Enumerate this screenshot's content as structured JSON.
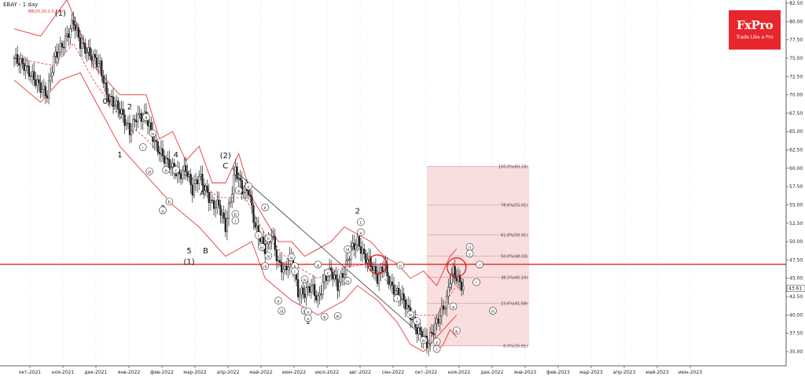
{
  "chart_data": {
    "type": "candlestick",
    "title": "EBAY - 1 day",
    "indicator": "BB(20,20,2.0,2.0)",
    "logo": {
      "brand": "FxPro",
      "tagline": "Trade Like a Pro"
    },
    "colors": {
      "band": "#e23b3b",
      "hline": "#e01010",
      "candle": "#222222",
      "fib_fill": "#f8dede",
      "fib_line": "#e6a0a0",
      "trend": "#333333"
    },
    "y_axis": {
      "min": 33.5,
      "max": 82.5,
      "ticks": [
        35.0,
        37.5,
        40.0,
        42.5,
        45.0,
        47.5,
        50.0,
        52.5,
        55.0,
        57.5,
        60.0,
        62.5,
        65.0,
        67.5,
        70.0,
        72.5,
        75.0,
        77.5,
        80.0,
        82.5
      ],
      "current_price": "43.61"
    },
    "x_axis": {
      "months": [
        "окт-2021",
        "ноя-2021",
        "дек-2021",
        "янв-2022",
        "фев-2022",
        "мар-2022",
        "апр-2022",
        "май-2022",
        "июн-2022",
        "июл-2022",
        "авг-2022",
        "сен-2022",
        "окт-2022",
        "ноя-2022",
        "дек-2022",
        "янв-2023",
        "фев-2023",
        "мар-2023",
        "апр-2023",
        "май-2023",
        "июн-2023"
      ]
    },
    "price_path": [
      [
        0,
        75
      ],
      [
        3,
        74
      ],
      [
        8,
        71
      ],
      [
        10,
        70
      ],
      [
        12,
        75
      ],
      [
        15,
        77
      ],
      [
        18,
        80
      ],
      [
        20,
        77
      ],
      [
        22,
        76
      ],
      [
        26,
        74
      ],
      [
        28,
        70
      ],
      [
        32,
        68
      ],
      [
        35,
        65
      ],
      [
        37,
        67
      ],
      [
        40,
        67
      ],
      [
        43,
        63
      ],
      [
        46,
        61
      ],
      [
        48,
        60
      ],
      [
        50,
        59
      ],
      [
        52,
        60
      ],
      [
        54,
        57
      ],
      [
        56,
        59
      ],
      [
        58,
        57
      ],
      [
        60,
        55
      ],
      [
        62,
        55
      ],
      [
        64,
        52
      ],
      [
        66,
        57
      ],
      [
        67,
        60
      ],
      [
        69,
        57
      ],
      [
        71,
        57
      ],
      [
        73,
        52
      ],
      [
        75,
        50
      ],
      [
        76,
        49
      ],
      [
        78,
        51
      ],
      [
        79,
        49
      ],
      [
        80,
        47
      ],
      [
        82,
        46
      ],
      [
        84,
        48
      ],
      [
        86,
        43
      ],
      [
        88,
        43
      ],
      [
        90,
        44
      ],
      [
        92,
        42
      ],
      [
        94,
        45
      ],
      [
        96,
        46
      ],
      [
        98,
        44
      ],
      [
        100,
        46
      ],
      [
        102,
        49
      ],
      [
        104,
        50
      ],
      [
        106,
        48
      ],
      [
        108,
        47
      ],
      [
        110,
        45
      ],
      [
        112,
        47
      ],
      [
        114,
        44
      ],
      [
        116,
        43
      ],
      [
        118,
        42
      ],
      [
        120,
        40
      ],
      [
        122,
        38
      ],
      [
        124,
        37
      ],
      [
        125,
        36
      ],
      [
        127,
        38
      ],
      [
        129,
        40
      ],
      [
        131,
        42
      ],
      [
        132,
        45
      ],
      [
        133,
        46
      ],
      [
        134,
        45
      ],
      [
        135,
        44.5
      ],
      [
        136,
        43.6
      ]
    ],
    "upper_band": [
      [
        0,
        79
      ],
      [
        8,
        78
      ],
      [
        16,
        83
      ],
      [
        24,
        74
      ],
      [
        32,
        70
      ],
      [
        40,
        70
      ],
      [
        44,
        64
      ],
      [
        48,
        65
      ],
      [
        52,
        61
      ],
      [
        56,
        63
      ],
      [
        60,
        58
      ],
      [
        64,
        58
      ],
      [
        68,
        62
      ],
      [
        72,
        56
      ],
      [
        76,
        53
      ],
      [
        80,
        50
      ],
      [
        84,
        50
      ],
      [
        88,
        48
      ],
      [
        92,
        49
      ],
      [
        96,
        50
      ],
      [
        100,
        52
      ],
      [
        104,
        51
      ],
      [
        108,
        50
      ],
      [
        112,
        48
      ],
      [
        116,
        47
      ],
      [
        120,
        45
      ],
      [
        124,
        46
      ],
      [
        128,
        44
      ],
      [
        132,
        48
      ],
      [
        134,
        49
      ]
    ],
    "mid_band": [
      [
        0,
        75
      ],
      [
        12,
        74
      ],
      [
        18,
        77
      ],
      [
        24,
        72
      ],
      [
        32,
        67
      ],
      [
        40,
        64
      ],
      [
        48,
        60
      ],
      [
        56,
        58
      ],
      [
        62,
        56
      ],
      [
        70,
        56
      ],
      [
        76,
        51
      ],
      [
        84,
        47
      ],
      [
        92,
        45
      ],
      [
        100,
        46.5
      ],
      [
        108,
        47
      ],
      [
        116,
        43
      ],
      [
        122,
        40
      ],
      [
        128,
        40
      ],
      [
        134,
        44
      ]
    ],
    "lower_band": [
      [
        0,
        72
      ],
      [
        8,
        69
      ],
      [
        14,
        72
      ],
      [
        20,
        73
      ],
      [
        26,
        68
      ],
      [
        32,
        63
      ],
      [
        40,
        59
      ],
      [
        48,
        55
      ],
      [
        56,
        52
      ],
      [
        64,
        48
      ],
      [
        72,
        50
      ],
      [
        76,
        45
      ],
      [
        84,
        42
      ],
      [
        92,
        40
      ],
      [
        100,
        42
      ],
      [
        104,
        44
      ],
      [
        110,
        42
      ],
      [
        116,
        39
      ],
      [
        120,
        36
      ],
      [
        124,
        35
      ],
      [
        128,
        37
      ],
      [
        132,
        39
      ],
      [
        134,
        40
      ]
    ],
    "lower_band2": [
      [
        128,
        35
      ],
      [
        130,
        36
      ],
      [
        132,
        38
      ],
      [
        134,
        37
      ]
    ],
    "horizontal_line": 46.9,
    "trendline": [
      [
        66,
        60
      ],
      [
        124,
        37
      ]
    ],
    "fibonacci": {
      "x_start": 125,
      "x_end": 156,
      "levels": [
        {
          "label": "100.0%(60.24)",
          "value": 60.24
        },
        {
          "label": "78.6%(55.01)",
          "value": 55.01
        },
        {
          "label": "61.8%(50.91)",
          "value": 50.91
        },
        {
          "label": "50.0%(48.03)",
          "value": 48.03
        },
        {
          "label": "38.2%(45.14)",
          "value": 45.14
        },
        {
          "label": "23.6%(41.58)",
          "value": 41.58
        },
        {
          "label": "0.0%(35.81)",
          "value": 35.81
        }
      ]
    },
    "circles": [
      [
        110,
        46.9
      ],
      [
        134,
        46.5
      ]
    ],
    "wave_labels": [
      {
        "t": "(1)",
        "x": 14,
        "v": 80.8
      },
      {
        "t": "0)",
        "x": 28,
        "v": 68.8
      },
      {
        "t": "2",
        "x": 35,
        "v": 68.0
      },
      {
        "t": "1",
        "x": 32,
        "v": 61.5
      },
      {
        "t": "4",
        "x": 49,
        "v": 61.5
      },
      {
        "t": "3",
        "x": 45,
        "v": 54.2
      },
      {
        "t": "A",
        "x": 57,
        "v": 56.3
      },
      {
        "t": "B",
        "x": 58,
        "v": 48.4
      },
      {
        "t": "5",
        "x": 53,
        "v": 48.4
      },
      {
        "t": "(1)",
        "x": 53,
        "v": 46.9
      },
      {
        "t": "(2)",
        "x": 64,
        "v": 61.4
      },
      {
        "t": "C",
        "x": 64,
        "v": 60.0
      },
      {
        "t": "1",
        "x": 89,
        "v": 38.8
      },
      {
        "t": "2",
        "x": 104,
        "v": 53.8
      },
      {
        "t": "ii",
        "x": 40,
        "v": 66.7
      },
      {
        "t": "iv",
        "x": 42,
        "v": 64.5
      },
      {
        "t": "i",
        "x": 39,
        "v": 62.6
      },
      {
        "t": "iii",
        "x": 41,
        "v": 59.3
      },
      {
        "t": "a",
        "x": 46,
        "v": 59.5
      },
      {
        "t": "c",
        "x": 49,
        "v": 59.5
      },
      {
        "t": "b",
        "x": 47,
        "v": 55.2
      },
      {
        "t": "v",
        "x": 45,
        "v": 54.0
      },
      {
        "t": "a",
        "x": 68,
        "v": 56.7
      },
      {
        "t": "c",
        "x": 71,
        "v": 57.3
      },
      {
        "t": "b",
        "x": 67,
        "v": 53.5
      },
      {
        "t": "i",
        "x": 67,
        "v": 52.6
      },
      {
        "t": "ii",
        "x": 76,
        "v": 54.4
      },
      {
        "t": "i",
        "x": 74,
        "v": 50.6
      },
      {
        "t": "iii",
        "x": 75,
        "v": 49.0
      },
      {
        "t": "ii",
        "x": 77,
        "v": 50.2
      },
      {
        "t": "iv",
        "x": 77,
        "v": 47.8
      },
      {
        "t": "iii",
        "x": 76,
        "v": 46.4
      },
      {
        "t": "iv",
        "x": 84,
        "v": 47.6
      },
      {
        "t": "v",
        "x": 80,
        "v": 41.7
      },
      {
        "t": "iii",
        "x": 81,
        "v": 40.3
      },
      {
        "t": "ii",
        "x": 85,
        "v": 46.4
      },
      {
        "t": "i",
        "x": 85,
        "v": 45.7
      },
      {
        "t": "iv",
        "x": 88,
        "v": 44.6
      },
      {
        "t": "iii",
        "x": 88,
        "v": 40.3
      },
      {
        "t": "v",
        "x": 89,
        "v": 39.3
      },
      {
        "t": "v",
        "x": 89,
        "v": 40.2
      },
      {
        "t": "a",
        "x": 92,
        "v": 46.6
      },
      {
        "t": "c",
        "x": 95,
        "v": 45.5
      },
      {
        "t": "b",
        "x": 94,
        "v": 39.5
      },
      {
        "t": "iii",
        "x": 98,
        "v": 39.6
      },
      {
        "t": "iii",
        "x": 101,
        "v": 48.7
      },
      {
        "t": "iv",
        "x": 101,
        "v": 44.4
      },
      {
        "t": "c",
        "x": 105,
        "v": 52.4
      },
      {
        "t": "v",
        "x": 105,
        "v": 51.0
      },
      {
        "t": "ii",
        "x": 117,
        "v": 46.5
      },
      {
        "t": "i",
        "x": 116,
        "v": 42.0
      },
      {
        "t": "iv",
        "x": 120,
        "v": 39.8
      },
      {
        "t": "ii",
        "x": 122,
        "v": 38.9
      },
      {
        "t": "iii",
        "x": 124,
        "v": 36.3
      },
      {
        "t": "v",
        "x": 128,
        "v": 36.1
      },
      {
        "t": "i",
        "x": 128,
        "v": 35.1
      },
      {
        "t": "a",
        "x": 133,
        "v": 40.9
      },
      {
        "t": "b",
        "x": 134,
        "v": 37.6
      },
      {
        "t": "ii",
        "x": 138,
        "v": 49.0
      },
      {
        "t": "c",
        "x": 138,
        "v": 48.1
      },
      {
        "t": "i",
        "x": 141,
        "v": 46.6
      },
      {
        "t": "i",
        "x": 140,
        "v": 44.2
      },
      {
        "t": "iii",
        "x": 145,
        "v": 40.3
      }
    ]
  }
}
